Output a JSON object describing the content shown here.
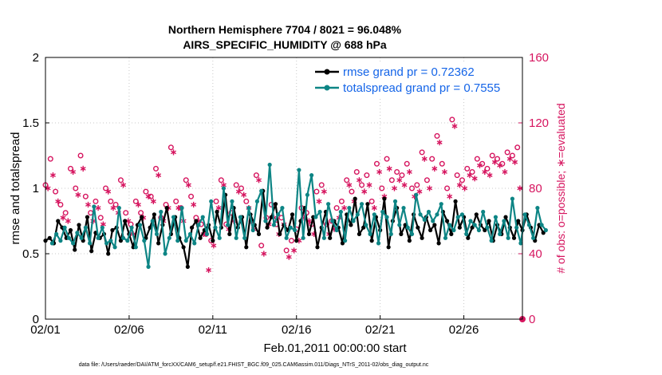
{
  "chart_data": {
    "type": "line",
    "title": "Northern Hemisphere 7704 / 8021 = 96.048%",
    "subtitle": "AIRS_SPECIFIC_HUMIDITY @ 688 hPa",
    "xlabel": "Feb.01,2011 00:00:00 start",
    "ylabel": "rmse and totalspread",
    "y2label": "# of obs: o=possible; ∗=evaluated",
    "xlim": [
      0,
      28.5
    ],
    "ylim": [
      0,
      2
    ],
    "y2lim": [
      0,
      160
    ],
    "x_ticks": [
      0,
      5,
      10,
      15,
      20,
      25
    ],
    "x_tick_labels": [
      "02/01",
      "02/06",
      "02/11",
      "02/16",
      "02/21",
      "02/26"
    ],
    "y_ticks": [
      0,
      0.5,
      1,
      1.5,
      2
    ],
    "y_tick_labels": [
      "0",
      "0.5",
      "1",
      "1.5",
      "2"
    ],
    "y2_ticks": [
      0,
      40,
      80,
      120,
      160
    ],
    "y2_tick_labels": [
      "0",
      "40",
      "80",
      "120",
      "160"
    ],
    "grid": true,
    "legend_position": "top-right",
    "x_step": 0.25,
    "series": [
      {
        "name": "rmse grand pr = 0.72362",
        "color": "#000000",
        "axis": "left",
        "values": [
          0.6,
          0.62,
          0.58,
          0.75,
          0.7,
          0.62,
          0.68,
          0.53,
          0.72,
          0.6,
          0.78,
          0.52,
          0.66,
          0.62,
          0.65,
          0.5,
          0.68,
          0.7,
          0.6,
          0.75,
          0.65,
          0.55,
          0.72,
          0.78,
          0.62,
          0.7,
          0.8,
          0.58,
          0.72,
          0.85,
          0.65,
          0.78,
          0.62,
          0.55,
          0.4,
          0.7,
          0.75,
          0.62,
          0.68,
          0.72,
          0.6,
          0.82,
          0.7,
          0.95,
          0.65,
          0.85,
          0.7,
          0.78,
          0.55,
          0.8,
          0.72,
          0.65,
          0.98,
          0.7,
          0.78,
          0.88,
          0.65,
          0.72,
          0.68,
          0.8,
          0.6,
          0.75,
          0.85,
          0.65,
          0.78,
          0.55,
          0.7,
          0.82,
          0.62,
          0.75,
          0.7,
          0.58,
          0.8,
          0.72,
          0.92,
          0.65,
          0.7,
          0.88,
          0.6,
          0.78,
          0.68,
          0.92,
          0.55,
          0.75,
          0.85,
          0.65,
          0.72,
          0.6,
          0.8,
          0.7,
          0.62,
          0.78,
          0.68,
          0.72,
          0.58,
          0.82,
          0.75,
          0.65,
          0.9,
          0.7,
          0.78,
          0.62,
          0.7,
          0.8,
          0.72,
          0.68,
          0.75,
          0.6,
          0.72,
          0.65,
          0.78,
          0.7,
          0.62,
          0.75,
          0.68,
          0.8,
          0.7,
          0.6,
          0.72,
          0.66
        ],
        "x_start": 0
      },
      {
        "name": "totalspread grand pr = 0.7555",
        "color": "#0d8585",
        "axis": "left",
        "values": [
          0.58,
          0.65,
          0.6,
          0.7,
          0.62,
          0.58,
          0.66,
          0.62,
          0.7,
          0.58,
          0.86,
          0.62,
          0.7,
          0.58,
          0.6,
          0.55,
          0.85,
          0.62,
          0.6,
          0.7,
          0.55,
          0.72,
          0.6,
          0.4,
          0.75,
          0.65,
          0.82,
          0.5,
          0.62,
          0.78,
          0.6,
          0.85,
          0.6,
          0.65,
          0.58,
          0.72,
          0.78,
          0.65,
          0.9,
          0.7,
          0.62,
          1.0,
          0.72,
          0.9,
          0.62,
          0.78,
          0.62,
          0.85,
          0.68,
          0.9,
          0.98,
          0.75,
          1.18,
          0.72,
          0.8,
          0.85,
          0.62,
          0.7,
          0.68,
          1.14,
          0.62,
          0.95,
          1.1,
          0.78,
          0.82,
          0.62,
          0.88,
          0.75,
          0.68,
          0.82,
          0.6,
          0.85,
          0.75,
          0.8,
          0.88,
          0.72,
          0.65,
          0.8,
          0.58,
          0.82,
          0.78,
          0.65,
          0.9,
          0.72,
          0.85,
          0.7,
          0.65,
          0.95,
          0.8,
          0.76,
          0.82,
          0.75,
          0.8,
          0.88,
          0.62,
          0.72,
          0.68,
          0.78,
          0.8,
          0.65,
          0.75,
          0.72,
          0.68,
          0.82,
          0.7,
          0.6,
          0.78,
          0.65,
          0.75,
          0.62,
          0.92,
          0.7,
          0.58,
          0.8,
          0.72,
          0.62,
          0.85,
          0.72,
          0.68
        ],
        "x_start": 0.4
      },
      {
        "name": "possible",
        "color": "#d6155f",
        "axis": "right",
        "marker": "o",
        "x": [
          0,
          0.3,
          0.6,
          0.9,
          1.2,
          1.5,
          1.8,
          2.1,
          2.4,
          2.7,
          3.0,
          3.3,
          3.6,
          3.9,
          4.2,
          4.5,
          4.8,
          5.1,
          5.4,
          5.7,
          6.0,
          6.3,
          6.6,
          6.9,
          7.2,
          7.5,
          7.8,
          8.1,
          8.4,
          8.7,
          9.0,
          9.3,
          9.6,
          9.9,
          10.2,
          10.5,
          10.8,
          11.1,
          11.4,
          11.7,
          12.0,
          12.3,
          12.6,
          12.9,
          13.2,
          13.5,
          13.8,
          14.1,
          14.4,
          14.7,
          15.0,
          15.3,
          15.6,
          15.9,
          16.2,
          16.5,
          16.8,
          17.1,
          17.4,
          17.7,
          18.0,
          18.3,
          18.6,
          18.9,
          19.2,
          19.5,
          19.8,
          20.1,
          20.4,
          20.7,
          21.0,
          21.3,
          21.6,
          21.9,
          22.2,
          22.5,
          22.8,
          23.1,
          23.4,
          23.7,
          24.0,
          24.3,
          24.6,
          24.9,
          25.2,
          25.5,
          25.8,
          26.1,
          26.4,
          26.7,
          27.0,
          27.3,
          27.6,
          27.9,
          28.2
        ],
        "values": [
          82,
          98,
          78,
          70,
          65,
          92,
          80,
          100,
          75,
          65,
          72,
          62,
          80,
          72,
          70,
          85,
          65,
          58,
          72,
          65,
          78,
          75,
          92,
          62,
          70,
          105,
          72,
          68,
          85,
          75,
          62,
          58,
          52,
          48,
          72,
          85,
          58,
          65,
          82,
          80,
          72,
          60,
          88,
          45,
          62,
          70,
          58,
          62,
          42,
          48,
          55,
          68,
          65,
          58,
          78,
          82,
          58,
          60,
          68,
          72,
          85,
          78,
          90,
          82,
          88,
          72,
          95,
          80,
          98,
          85,
          90,
          88,
          95,
          80,
          82,
          102,
          85,
          98,
          112,
          95,
          80,
          122,
          88,
          85,
          92,
          90,
          98,
          95,
          92,
          100,
          98,
          95,
          102,
          100,
          105
        ]
      },
      {
        "name": "evaluated",
        "color": "#d6155f",
        "axis": "right",
        "marker": "*",
        "x": [
          0.15,
          0.45,
          0.75,
          1.05,
          1.35,
          1.65,
          1.95,
          2.25,
          2.55,
          2.85,
          3.15,
          3.45,
          3.75,
          4.05,
          4.35,
          4.65,
          4.95,
          5.25,
          5.55,
          5.85,
          6.15,
          6.45,
          6.75,
          7.05,
          7.35,
          7.65,
          7.95,
          8.25,
          8.55,
          8.85,
          9.15,
          9.45,
          9.75,
          10.05,
          10.35,
          10.65,
          10.95,
          11.25,
          11.55,
          11.85,
          12.15,
          12.45,
          12.75,
          13.05,
          13.35,
          13.65,
          13.95,
          14.25,
          14.55,
          14.85,
          15.15,
          15.45,
          15.75,
          16.05,
          16.35,
          16.65,
          16.95,
          17.25,
          17.55,
          17.85,
          18.15,
          18.45,
          18.75,
          19.05,
          19.35,
          19.65,
          19.95,
          20.25,
          20.55,
          20.85,
          21.15,
          21.45,
          21.75,
          22.05,
          22.35,
          22.65,
          22.95,
          23.25,
          23.55,
          23.85,
          24.15,
          24.45,
          24.75,
          25.05,
          25.35,
          25.65,
          25.95,
          26.25,
          26.55,
          26.85,
          27.15,
          27.45,
          27.75,
          28.05,
          28.35
        ],
        "values": [
          80,
          88,
          72,
          62,
          60,
          90,
          76,
          92,
          70,
          60,
          68,
          58,
          78,
          68,
          65,
          82,
          60,
          52,
          70,
          62,
          75,
          72,
          88,
          60,
          68,
          102,
          68,
          60,
          82,
          70,
          60,
          52,
          30,
          45,
          68,
          82,
          55,
          60,
          78,
          76,
          68,
          55,
          85,
          40,
          58,
          62,
          52,
          58,
          38,
          42,
          48,
          62,
          60,
          52,
          72,
          78,
          52,
          55,
          62,
          68,
          82,
          72,
          85,
          78,
          82,
          68,
          90,
          75,
          92,
          80,
          85,
          82,
          90,
          75,
          78,
          98,
          80,
          92,
          108,
          90,
          75,
          118,
          82,
          80,
          88,
          86,
          94,
          90,
          88,
          96,
          94,
          90,
          98,
          96,
          80
        ]
      }
    ],
    "footer": "data file: /Users/raeder/DAI/ATM_forcXX/CAM6_setup/f.e21.FHIST_BGC.f09_025.CAM6assim.011/Diags_NTrS_2011-02/obs_diag_output.nc",
    "colors": {
      "rmse": "#000000",
      "spread": "#0d8585",
      "obs": "#d6155f",
      "legend_text": "#1565e8"
    }
  }
}
